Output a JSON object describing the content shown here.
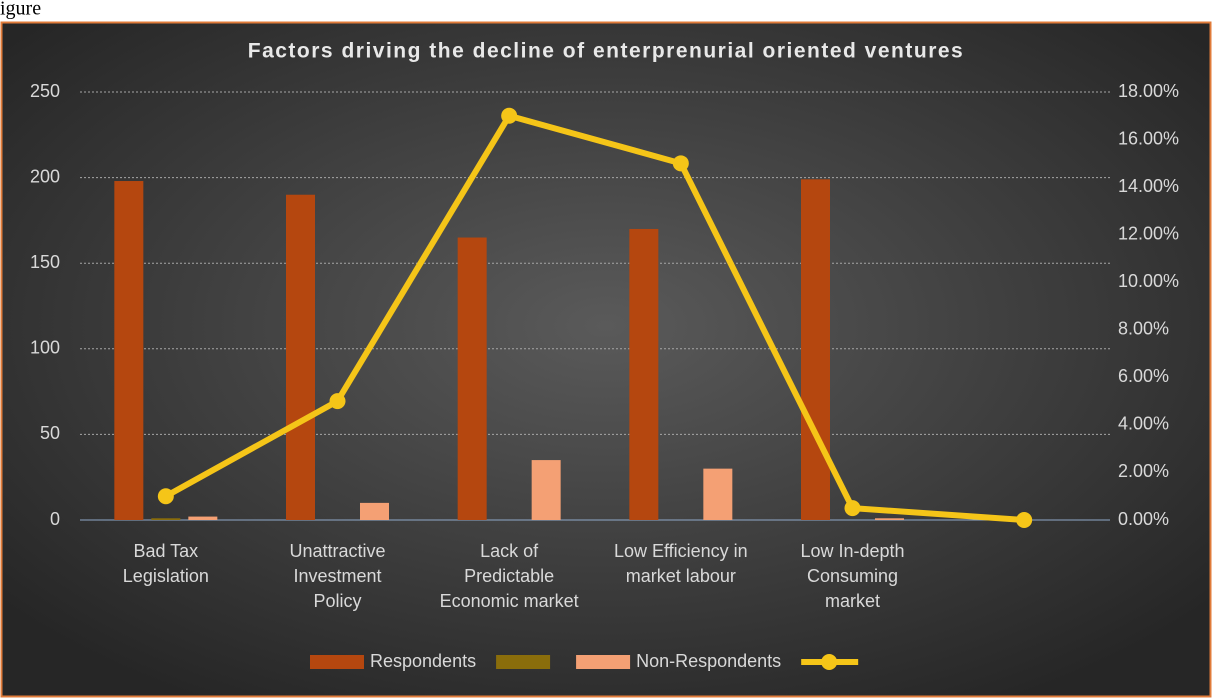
{
  "caption": "igure",
  "chart_data": {
    "type": "bar_line",
    "title": "Factors driving the decline of enterprenurial oriented ventures",
    "categories": [
      "Bad Tax\nLegislation",
      "Unattractive\nInvestment\nPolicy",
      "Lack of\nPredictable\nEconomic market",
      "Low Efficiency in\nmarket labour",
      "Low In-depth\nConsuming\nmarket",
      null
    ],
    "series": [
      {
        "name": "Respondents",
        "color": "#b5470f",
        "type": "bar",
        "values": [
          198,
          190,
          165,
          170,
          199,
          null
        ]
      },
      {
        "color": "#8a6d0b",
        "type": "bar",
        "values": [
          1,
          0,
          0,
          0,
          0,
          null
        ]
      },
      {
        "name": "Non-Respondents",
        "color": "#f4a074",
        "type": "bar",
        "values": [
          2,
          10,
          35,
          30,
          1,
          null
        ]
      },
      {
        "color": "#f5c518",
        "type": "line",
        "axis": "y2",
        "values": [
          1,
          5,
          17,
          15,
          0.5,
          0
        ]
      }
    ],
    "ylim": [
      0,
      250
    ],
    "yticks": [
      0,
      50,
      100,
      150,
      200,
      250
    ],
    "y2lim": [
      0,
      18
    ],
    "y2ticks": [
      {
        "value": 0,
        "label": "0.00%"
      },
      {
        "value": 2,
        "label": "2.00%"
      },
      {
        "value": 4,
        "label": "4.00%"
      },
      {
        "value": 6,
        "label": "6.00%"
      },
      {
        "value": 8,
        "label": "8.00%"
      },
      {
        "value": 10,
        "label": "10.00%"
      },
      {
        "value": 12,
        "label": "12.00%"
      },
      {
        "value": 14,
        "label": "14.00%"
      },
      {
        "value": 16,
        "label": "16.00%"
      },
      {
        "value": 18,
        "label": "18.00%"
      }
    ],
    "grid": true,
    "legend": "bottom"
  }
}
